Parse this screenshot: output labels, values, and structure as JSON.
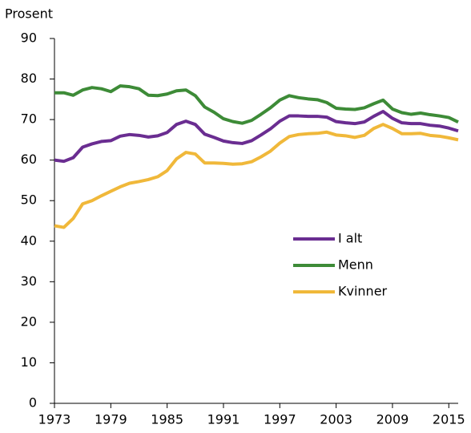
{
  "chart_data": {
    "type": "line",
    "y_label": "Prosent",
    "x": [
      1973,
      1974,
      1975,
      1976,
      1977,
      1978,
      1979,
      1980,
      1981,
      1982,
      1983,
      1984,
      1985,
      1986,
      1987,
      1988,
      1989,
      1990,
      1991,
      1992,
      1993,
      1994,
      1995,
      1996,
      1997,
      1998,
      1999,
      2000,
      2001,
      2002,
      2003,
      2004,
      2005,
      2006,
      2007,
      2008,
      2009,
      2010,
      2011,
      2012,
      2013,
      2014,
      2015,
      2016
    ],
    "series": [
      {
        "name": "I alt",
        "color": "#6a2d91",
        "values": [
          60.0,
          59.7,
          60.6,
          63.2,
          64.0,
          64.6,
          64.8,
          65.9,
          66.3,
          66.1,
          65.7,
          66.0,
          66.8,
          68.8,
          69.6,
          68.8,
          66.4,
          65.6,
          64.7,
          64.3,
          64.1,
          64.8,
          66.2,
          67.7,
          69.6,
          70.9,
          70.9,
          70.8,
          70.8,
          70.6,
          69.5,
          69.2,
          69.0,
          69.4,
          70.8,
          72.0,
          70.3,
          69.2,
          69.0,
          69.0,
          68.6,
          68.4,
          67.9,
          67.2
        ]
      },
      {
        "name": "Menn",
        "color": "#3d8b37",
        "values": [
          76.6,
          76.6,
          76.0,
          77.3,
          77.9,
          77.6,
          76.9,
          78.3,
          78.1,
          77.6,
          76.0,
          75.9,
          76.3,
          77.1,
          77.3,
          75.9,
          73.1,
          71.8,
          70.2,
          69.5,
          69.1,
          69.8,
          71.3,
          72.9,
          74.8,
          75.9,
          75.4,
          75.1,
          74.9,
          74.2,
          72.8,
          72.6,
          72.5,
          72.9,
          73.9,
          74.8,
          72.6,
          71.7,
          71.3,
          71.6,
          71.2,
          70.9,
          70.5,
          69.4
        ]
      },
      {
        "name": "Kvinner",
        "color": "#f0b83a",
        "values": [
          43.8,
          43.4,
          45.6,
          49.2,
          50.0,
          51.2,
          52.3,
          53.4,
          54.3,
          54.7,
          55.2,
          55.9,
          57.4,
          60.3,
          61.9,
          61.5,
          59.3,
          59.3,
          59.2,
          59.0,
          59.1,
          59.6,
          60.8,
          62.2,
          64.2,
          65.8,
          66.3,
          66.5,
          66.6,
          66.9,
          66.2,
          66.0,
          65.6,
          66.1,
          67.8,
          68.8,
          67.8,
          66.5,
          66.5,
          66.6,
          66.1,
          65.9,
          65.5,
          65.0
        ]
      }
    ],
    "xlim": [
      1973,
      2016
    ],
    "xticks": [
      1973,
      1979,
      1985,
      1991,
      1997,
      2003,
      2009,
      2015
    ],
    "ylim": [
      0,
      90
    ],
    "yticks": [
      0,
      10,
      20,
      30,
      40,
      50,
      60,
      70,
      80,
      90
    ]
  }
}
